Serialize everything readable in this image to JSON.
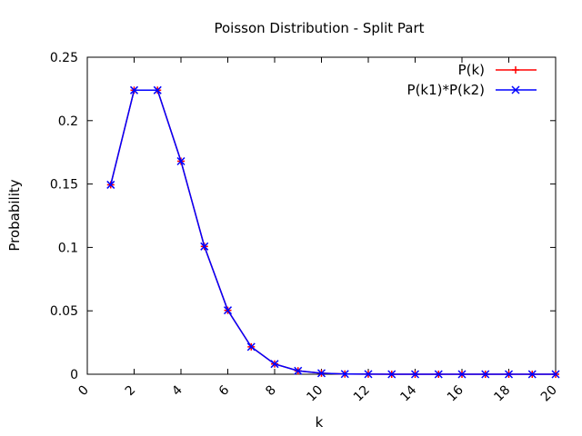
{
  "chart_data": {
    "type": "line",
    "title": "Poisson Distribution - Split Part",
    "xlabel": "k",
    "ylabel": "Probability",
    "xlim": [
      0,
      20
    ],
    "ylim": [
      0,
      0.25
    ],
    "xticks": [
      "0",
      "2",
      "4",
      "6",
      "8",
      "10",
      "12",
      "14",
      "16",
      "18",
      "20"
    ],
    "yticks": [
      "0",
      "0.05",
      "0.1",
      "0.15",
      "0.2",
      "0.25"
    ],
    "grid": false,
    "legend_position": "top-right",
    "x": [
      1,
      2,
      3,
      4,
      5,
      6,
      7,
      8,
      9,
      10,
      11,
      12,
      13,
      14,
      15,
      16,
      17,
      18,
      19,
      20
    ],
    "series": [
      {
        "name": "P(k)",
        "color": "#ff0000",
        "marker": "plus",
        "values": [
          0.1494,
          0.224,
          0.224,
          0.168,
          0.1008,
          0.0504,
          0.0216,
          0.0081,
          0.0027,
          0.0008,
          0.0002,
          0.0001,
          0.0,
          0.0,
          0.0,
          0.0,
          0.0,
          0.0,
          0.0,
          0.0
        ]
      },
      {
        "name": "P(k1)*P(k2)",
        "color": "#0000ff",
        "marker": "cross",
        "values": [
          0.1494,
          0.224,
          0.224,
          0.168,
          0.1008,
          0.0504,
          0.0216,
          0.0081,
          0.0027,
          0.0008,
          0.0002,
          0.0001,
          0.0,
          0.0,
          0.0,
          0.0,
          0.0,
          0.0,
          0.0,
          0.0
        ]
      }
    ]
  }
}
